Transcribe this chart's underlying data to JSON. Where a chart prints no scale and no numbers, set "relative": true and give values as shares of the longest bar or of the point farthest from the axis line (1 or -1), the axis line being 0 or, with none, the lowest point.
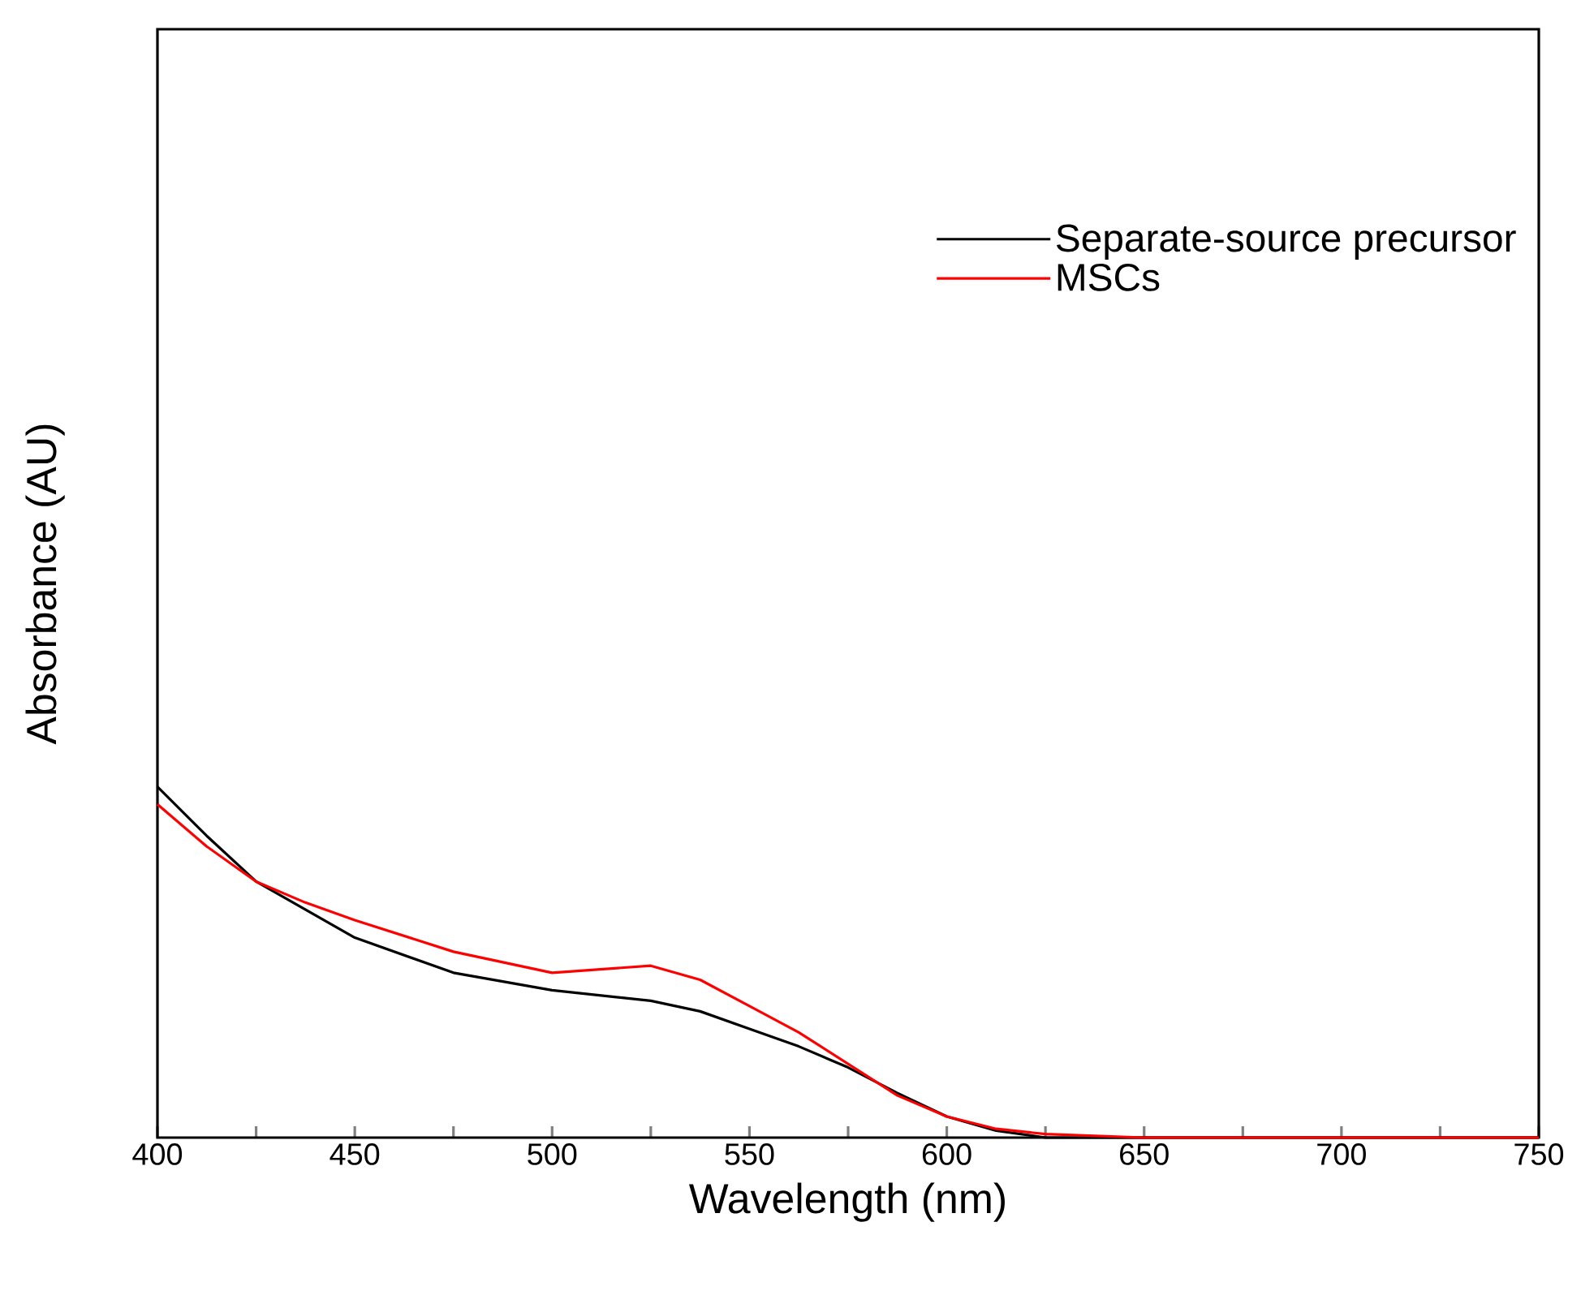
{
  "chart_data": {
    "type": "line",
    "xlabel": "Wavelength (nm)",
    "ylabel": "Absorbance (AU)",
    "relative": true,
    "x": [
      400,
      412.5,
      425,
      437.5,
      450,
      475,
      500,
      525,
      537.5,
      550,
      562.5,
      575,
      587.5,
      600,
      612.5,
      625,
      650,
      700,
      750
    ],
    "series": [
      {
        "name": "Separate-source precursor",
        "color": "#000000",
        "values": [
          1.0,
          0.86,
          0.73,
          0.65,
          0.57,
          0.47,
          0.42,
          0.39,
          0.36,
          0.31,
          0.26,
          0.2,
          0.127,
          0.06,
          0.02,
          0.0,
          0.0,
          0.0,
          0.0
        ]
      },
      {
        "name": "MSCs",
        "color": "#ff0000",
        "values": [
          0.95,
          0.83,
          0.73,
          0.67,
          0.62,
          0.53,
          0.47,
          0.49,
          0.45,
          0.375,
          0.3,
          0.21,
          0.12,
          0.06,
          0.025,
          0.01,
          0.0,
          0.0,
          0.0
        ]
      }
    ],
    "xlim": [
      400,
      750
    ],
    "xticks": [
      400,
      {
        "value": 425,
        "label": null
      },
      450,
      {
        "value": 475,
        "label": null
      },
      500,
      {
        "value": 525,
        "label": null
      },
      550,
      {
        "value": 575,
        "label": null
      },
      600,
      {
        "value": 625,
        "label": null
      },
      650,
      {
        "value": 675,
        "label": null
      },
      700,
      {
        "value": 725,
        "label": null
      },
      750
    ],
    "legend": "top right",
    "marker": "none",
    "line_style": "solid",
    "grid": false
  }
}
